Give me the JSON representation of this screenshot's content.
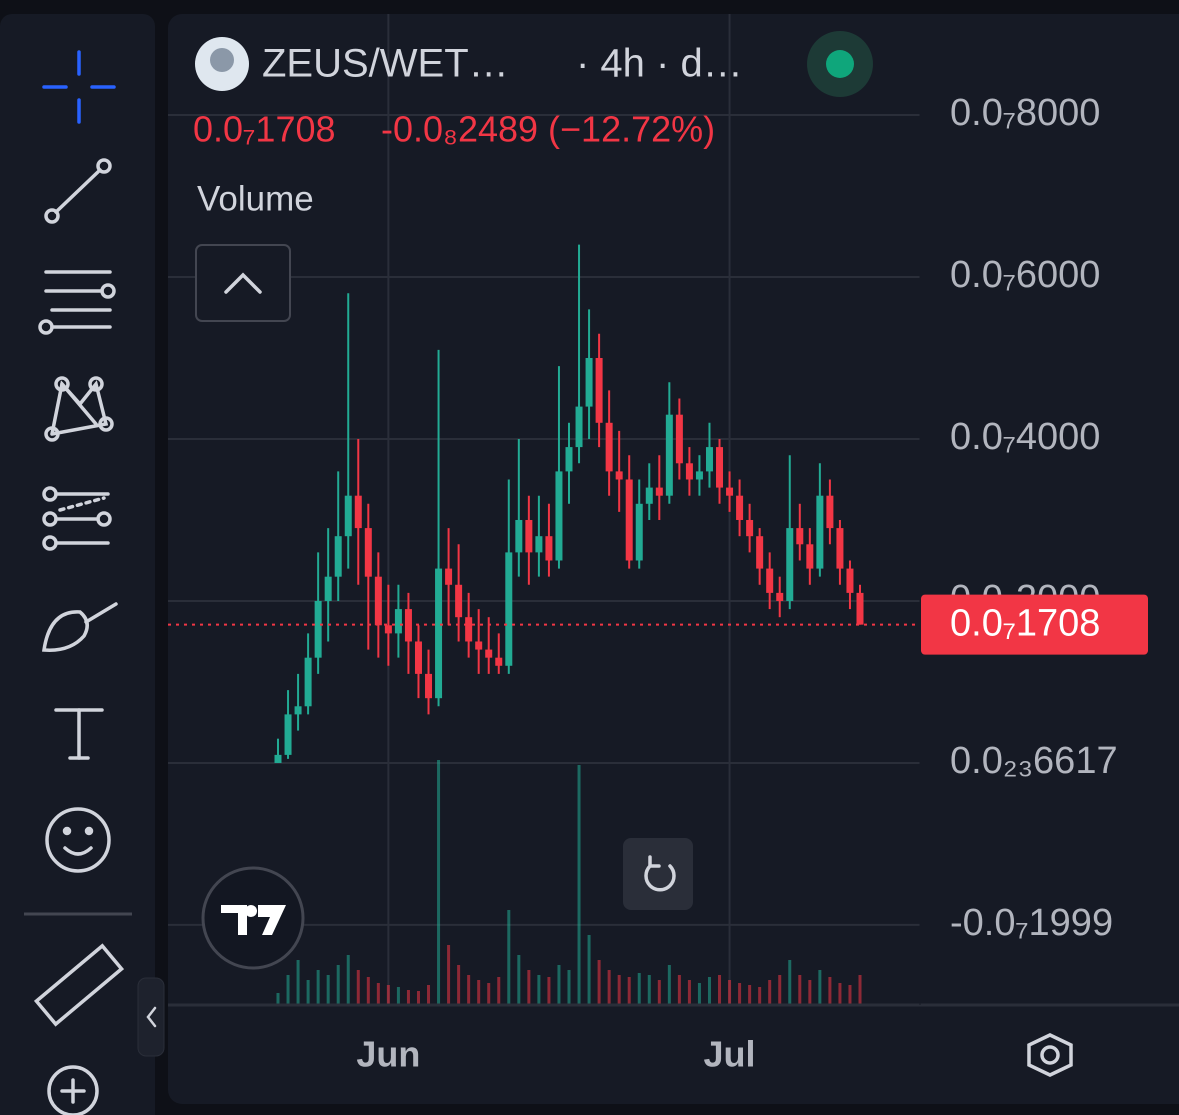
{
  "chart_data": {
    "type": "candlestick",
    "symbol": "ZEUS/WET…",
    "interval": "· 4h · d…",
    "last_price": {
      "value": 1.708e-08,
      "label": "0.0₇1708"
    },
    "change": "-0.0₈2489 (−12.72%)",
    "volume_label": "Volume",
    "up_color": "#22ab94",
    "down_color": "#f23645",
    "grid": true,
    "ylim": [
      -2.988e-08,
      9.247e-08
    ],
    "yticks": [
      {
        "value": 8e-08,
        "label": "0.0₇8000"
      },
      {
        "value": 6e-08,
        "label": "0.0₇6000"
      },
      {
        "value": 4e-08,
        "label": "0.0₇4000"
      },
      {
        "value": 2e-08,
        "label": "0.0₇2000"
      },
      {
        "value": 6.617e-24,
        "label": "0.0₂₃6617"
      },
      {
        "value": -1.999e-08,
        "label": "-0.0₇1999"
      }
    ],
    "categories": [
      null,
      null,
      null,
      null,
      null,
      null,
      null,
      null,
      null,
      null,
      null,
      "Jun",
      null,
      null,
      null,
      null,
      null,
      null,
      null,
      null,
      null,
      null,
      null,
      null,
      null,
      null,
      null,
      null,
      null,
      null,
      null,
      null,
      null,
      null,
      null,
      null,
      null,
      null,
      null,
      null,
      null,
      null,
      null,
      null,
      null,
      "Jul",
      null,
      null,
      null,
      null,
      null,
      null,
      null,
      null,
      null,
      null,
      null,
      null,
      null
    ],
    "candles": [
      [
        0,
        3e-09,
        0,
        1e-09
      ],
      [
        1e-09,
        9e-09,
        5e-10,
        6e-09
      ],
      [
        6e-09,
        1.1e-08,
        4e-09,
        7e-09
      ],
      [
        7e-09,
        1.6e-08,
        6e-09,
        1.3e-08
      ],
      [
        1.3e-08,
        2.6e-08,
        1.1e-08,
        2e-08
      ],
      [
        2e-08,
        2.9e-08,
        1.5e-08,
        2.3e-08
      ],
      [
        2.3e-08,
        3.6e-08,
        2e-08,
        2.8e-08
      ],
      [
        2.8e-08,
        5.8e-08,
        2.4e-08,
        3.3e-08
      ],
      [
        3.3e-08,
        4e-08,
        2.2e-08,
        2.9e-08
      ],
      [
        2.9e-08,
        3.2e-08,
        1.4e-08,
        2.3e-08
      ],
      [
        2.3e-08,
        2.6e-08,
        1.3e-08,
        1.7e-08
      ],
      [
        1.7e-08,
        2.2e-08,
        1.2e-08,
        1.6e-08
      ],
      [
        1.6e-08,
        2.2e-08,
        1.3e-08,
        1.9e-08
      ],
      [
        1.9e-08,
        2.1e-08,
        1.1e-08,
        1.5e-08
      ],
      [
        1.5e-08,
        1.7e-08,
        8e-09,
        1.1e-08
      ],
      [
        1.1e-08,
        1.4e-08,
        6e-09,
        8e-09
      ],
      [
        8e-09,
        5.1e-08,
        7e-09,
        2.4e-08
      ],
      [
        2.4e-08,
        2.9e-08,
        1.7e-08,
        2.2e-08
      ],
      [
        2.2e-08,
        2.7e-08,
        1.5e-08,
        1.8e-08
      ],
      [
        1.8e-08,
        2.1e-08,
        1.3e-08,
        1.5e-08
      ],
      [
        1.5e-08,
        1.9e-08,
        1.1e-08,
        1.4e-08
      ],
      [
        1.4e-08,
        1.8e-08,
        1.1e-08,
        1.3e-08
      ],
      [
        1.3e-08,
        1.6e-08,
        1.1e-08,
        1.2e-08
      ],
      [
        1.2e-08,
        3.5e-08,
        1.1e-08,
        2.6e-08
      ],
      [
        2.6e-08,
        4e-08,
        2.3e-08,
        3e-08
      ],
      [
        3e-08,
        3.3e-08,
        2.2e-08,
        2.6e-08
      ],
      [
        2.6e-08,
        3.3e-08,
        2.3e-08,
        2.8e-08
      ],
      [
        2.8e-08,
        3.2e-08,
        2.3e-08,
        2.5e-08
      ],
      [
        2.5e-08,
        4.9e-08,
        2.4e-08,
        3.6e-08
      ],
      [
        3.6e-08,
        4.2e-08,
        3.2e-08,
        3.9e-08
      ],
      [
        3.9e-08,
        6.4e-08,
        3.7e-08,
        4.4e-08
      ],
      [
        4.4e-08,
        5.6e-08,
        4e-08,
        5e-08
      ],
      [
        5e-08,
        5.3e-08,
        3.9e-08,
        4.2e-08
      ],
      [
        4.2e-08,
        4.6e-08,
        3.3e-08,
        3.6e-08
      ],
      [
        3.6e-08,
        4.1e-08,
        3.1e-08,
        3.5e-08
      ],
      [
        3.5e-08,
        3.8e-08,
        2.4e-08,
        2.5e-08
      ],
      [
        2.5e-08,
        3.5e-08,
        2.4e-08,
        3.2e-08
      ],
      [
        3.2e-08,
        3.7e-08,
        3e-08,
        3.4e-08
      ],
      [
        3.4e-08,
        3.8e-08,
        3e-08,
        3.3e-08
      ],
      [
        3.3e-08,
        4.7e-08,
        3.2e-08,
        4.3e-08
      ],
      [
        4.3e-08,
        4.5e-08,
        3.5e-08,
        3.7e-08
      ],
      [
        3.7e-08,
        3.9e-08,
        3.3e-08,
        3.5e-08
      ],
      [
        3.5e-08,
        3.8e-08,
        3.3e-08,
        3.6e-08
      ],
      [
        3.6e-08,
        4.2e-08,
        3.4e-08,
        3.9e-08
      ],
      [
        3.9e-08,
        4e-08,
        3.2e-08,
        3.4e-08
      ],
      [
        3.4e-08,
        3.6e-08,
        3.1e-08,
        3.3e-08
      ],
      [
        3.3e-08,
        3.5e-08,
        2.8e-08,
        3e-08
      ],
      [
        3e-08,
        3.2e-08,
        2.6e-08,
        2.8e-08
      ],
      [
        2.8e-08,
        2.9e-08,
        2.2e-08,
        2.4e-08
      ],
      [
        2.4e-08,
        2.6e-08,
        1.9e-08,
        2.1e-08
      ],
      [
        2.1e-08,
        2.3e-08,
        1.8e-08,
        2e-08
      ],
      [
        2e-08,
        3.8e-08,
        1.9e-08,
        2.9e-08
      ],
      [
        2.9e-08,
        3.2e-08,
        2.5e-08,
        2.7e-08
      ],
      [
        2.7e-08,
        2.9e-08,
        2.2e-08,
        2.4e-08
      ],
      [
        2.4e-08,
        3.7e-08,
        2.3e-08,
        3.3e-08
      ],
      [
        3.3e-08,
        3.5e-08,
        2.7e-08,
        2.9e-08
      ],
      [
        2.9e-08,
        3e-08,
        2.2e-08,
        2.4e-08
      ],
      [
        2.4e-08,
        2.5e-08,
        1.9e-08,
        2.1e-08
      ],
      [
        2.1e-08,
        2.2e-08,
        1.708e-08,
        1.708e-08
      ]
    ],
    "volumes": [
      12,
      30,
      45,
      25,
      35,
      30,
      40,
      50,
      35,
      28,
      22,
      20,
      18,
      15,
      14,
      20,
      245,
      60,
      40,
      30,
      25,
      22,
      28,
      95,
      50,
      35,
      30,
      28,
      40,
      35,
      240,
      70,
      45,
      35,
      30,
      28,
      32,
      30,
      25,
      40,
      30,
      25,
      22,
      28,
      30,
      25,
      22,
      20,
      18,
      25,
      30,
      45,
      30,
      25,
      35,
      28,
      22,
      20,
      30
    ]
  }
}
